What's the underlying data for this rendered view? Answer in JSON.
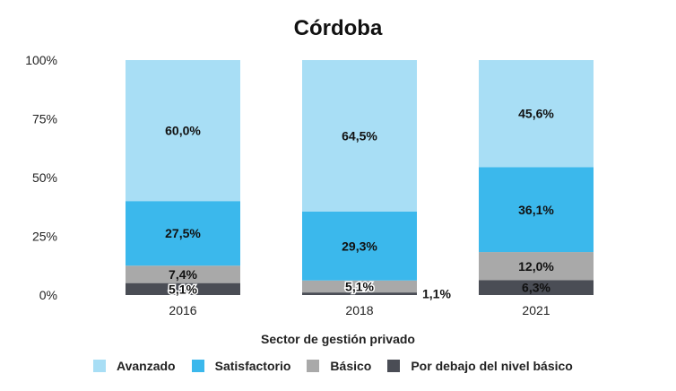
{
  "chart_data": {
    "type": "bar",
    "stacked": true,
    "title": "Córdoba",
    "xlabel": "Sector de gestión privado",
    "ylabel": "",
    "ylim": [
      0,
      100
    ],
    "yticks": [
      "0%",
      "25%",
      "50%",
      "75%",
      "100%"
    ],
    "categories": [
      "2016",
      "2018",
      "2021"
    ],
    "series": [
      {
        "name": "Por debajo del nivel básico",
        "color": "#4a4d55",
        "values": [
          5.1,
          1.1,
          6.3
        ],
        "labels": [
          "5,1%",
          "1,1%",
          "6,3%"
        ]
      },
      {
        "name": "Básico",
        "color": "#a9a9a9",
        "values": [
          7.4,
          5.1,
          12.0
        ],
        "labels": [
          "7,4%",
          "5,1%",
          "12,0%"
        ]
      },
      {
        "name": "Satisfactorio",
        "color": "#3bb8ec",
        "values": [
          27.5,
          29.3,
          36.1
        ],
        "labels": [
          "27,5%",
          "29,3%",
          "36,1%"
        ]
      },
      {
        "name": "Avanzado",
        "color": "#a8def5",
        "values": [
          60.0,
          64.5,
          45.6
        ],
        "labels": [
          "60,0%",
          "64,5%",
          "45,6%"
        ]
      }
    ],
    "legend_order": [
      "Avanzado",
      "Satisfactorio",
      "Básico",
      "Por debajo del nivel básico"
    ],
    "grid": false,
    "legend_position": "bottom"
  }
}
